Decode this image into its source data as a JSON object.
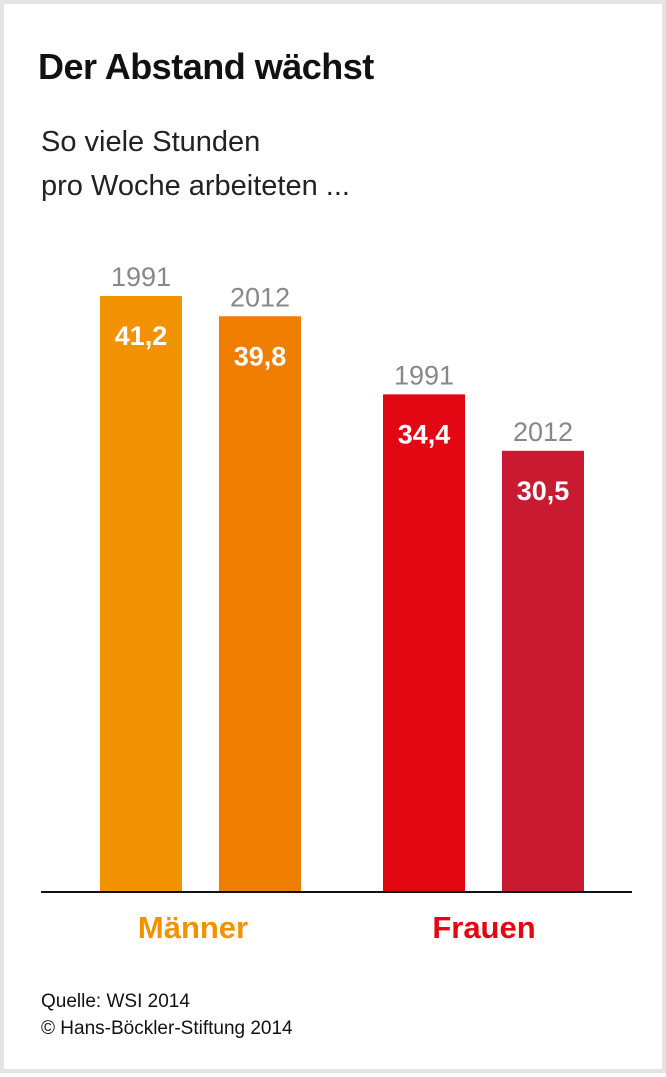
{
  "title": "Der Abstand wächst",
  "subtitle_lines": [
    "So viele Stunden",
    "pro Woche arbeiteten ..."
  ],
  "source_line1": "Quelle: WSI 2014",
  "source_line2": "© Hans-Böckler-Stiftung 2014",
  "colors": {
    "maenner_1991": "#f39200",
    "maenner_2012": "#ef7d00",
    "frauen_1991": "#e30613",
    "frauen_2012": "#c91a32",
    "maenner_label": "#f39200",
    "frauen_label": "#e30613",
    "year_label": "#888888",
    "value_label": "#ffffff"
  },
  "chart_data": {
    "type": "bar",
    "title": "Der Abstand wächst",
    "subtitle": "So viele Stunden pro Woche arbeiteten ...",
    "categories": [
      "Männer",
      "Frauen"
    ],
    "series_by_category": [
      {
        "category": "Männer",
        "bars": [
          {
            "year": "1991",
            "value": 41.2,
            "label": "41,2",
            "color": "#f39200"
          },
          {
            "year": "2012",
            "value": 39.8,
            "label": "39,8",
            "color": "#ef7d00"
          }
        ]
      },
      {
        "category": "Frauen",
        "bars": [
          {
            "year": "1991",
            "value": 34.4,
            "label": "34,4",
            "color": "#e30613"
          },
          {
            "year": "2012",
            "value": 30.5,
            "label": "30,5",
            "color": "#c91a32"
          }
        ]
      }
    ],
    "ylim": [
      0,
      41.2
    ],
    "grid": false,
    "legend": "none"
  }
}
